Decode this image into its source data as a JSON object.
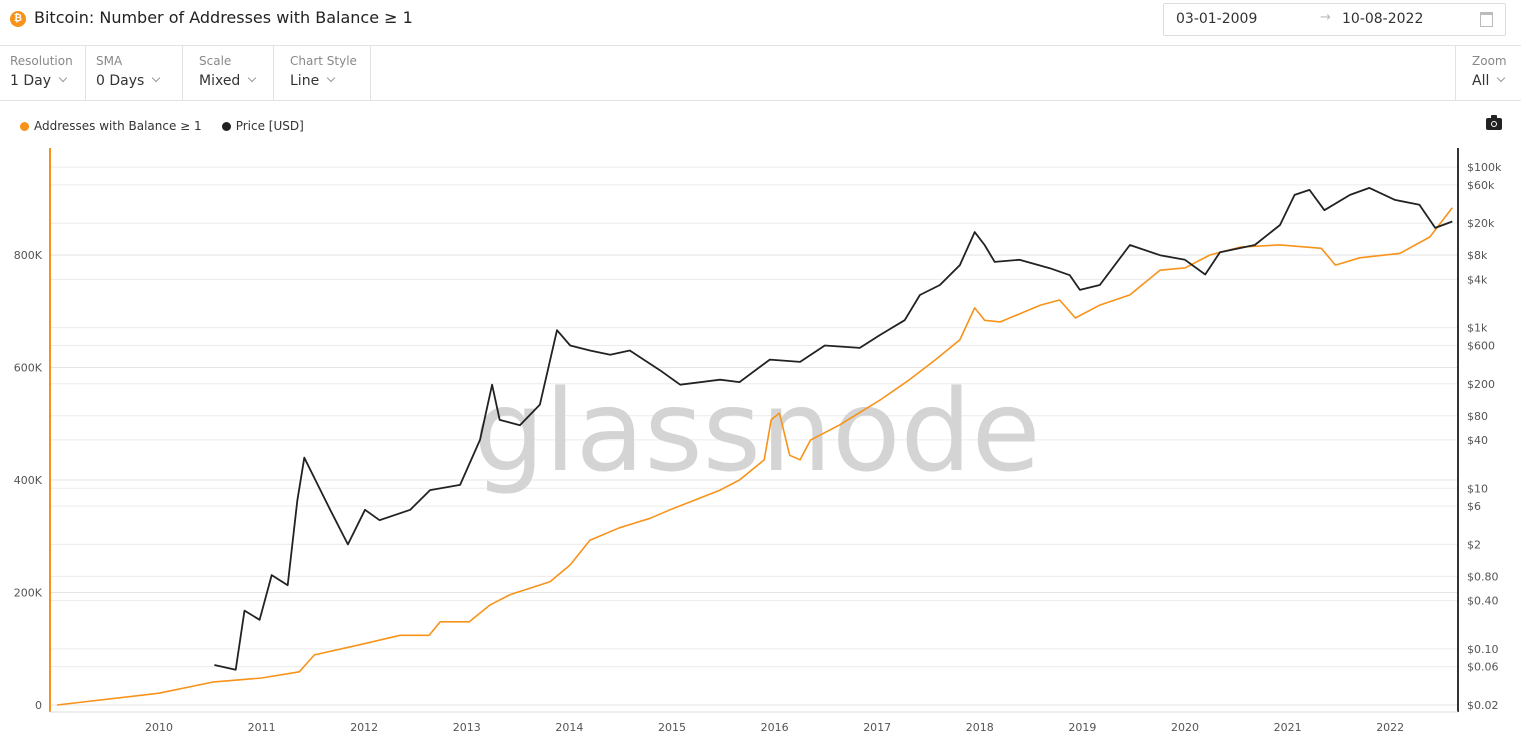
{
  "header": {
    "title": "Bitcoin: Number of Addresses with Balance ≥ 1",
    "asset_icon": "bitcoin-icon",
    "date_from": "03-01-2009",
    "date_arrow": "→",
    "date_to": "10-08-2022"
  },
  "toolbar": {
    "resolution": {
      "label": "Resolution",
      "value": "1 Day"
    },
    "sma": {
      "label": "SMA",
      "value": "0 Days"
    },
    "scale": {
      "label": "Scale",
      "value": "Mixed"
    },
    "chart_style": {
      "label": "Chart Style",
      "value": "Line"
    },
    "zoom": {
      "label": "Zoom",
      "value": "All"
    }
  },
  "watermark": "glassnode",
  "colors": {
    "addresses": "#f7931a",
    "price": "#222222",
    "grid": "#ececec"
  },
  "chart_data": {
    "type": "line",
    "title": "Bitcoin: Number of Addresses with Balance ≥ 1",
    "legend_placement": "top-left",
    "grid": true,
    "x_ticks": [
      "2010",
      "2011",
      "2012",
      "2013",
      "2014",
      "2015",
      "2016",
      "2017",
      "2018",
      "2019",
      "2020",
      "2021",
      "2022"
    ],
    "x_range": [
      "2009-01-03",
      "2022-08-10"
    ],
    "y_left": {
      "scale": "linear",
      "range": [
        0,
        1000000
      ],
      "ticks": [
        0,
        200000,
        400000,
        600000,
        800000
      ],
      "tick_labels": [
        "0",
        "200K",
        "400K",
        "600K",
        "800K"
      ]
    },
    "y_right": {
      "scale": "log",
      "range": [
        0.02,
        100000
      ],
      "ticks": [
        100000,
        60000,
        20000,
        8000,
        4000,
        1000,
        600,
        200,
        80,
        40,
        10,
        6,
        2,
        0.8,
        0.4,
        0.1,
        0.06,
        0.02
      ],
      "tick_labels": [
        "$100k",
        "$60k",
        "$20k",
        "$8k",
        "$4k",
        "$1k",
        "$600",
        "$200",
        "$80",
        "$40",
        "$10",
        "$6",
        "$2",
        "$0.80",
        "$0.40",
        "$0.10",
        "$0.06",
        "$0.02"
      ]
    },
    "series": [
      {
        "name": "Addresses with Balance ≥ 1",
        "axis": "left",
        "color": "#f7931a",
        "points": [
          [
            "2009-01-03",
            0
          ],
          [
            "2010-01-01",
            21000
          ],
          [
            "2010-07-15",
            41000
          ],
          [
            "2011-01-01",
            48000
          ],
          [
            "2011-05-15",
            59000
          ],
          [
            "2011-07-08",
            89000
          ],
          [
            "2011-12-15",
            107000
          ],
          [
            "2012-05-08",
            124000
          ],
          [
            "2012-08-20",
            124000
          ],
          [
            "2012-09-28",
            148000
          ],
          [
            "2013-01-10",
            148000
          ],
          [
            "2013-03-25",
            178000
          ],
          [
            "2013-06-03",
            196000
          ],
          [
            "2013-10-24",
            219000
          ],
          [
            "2014-01-04",
            249000
          ],
          [
            "2014-03-15",
            293000
          ],
          [
            "2014-06-28",
            315000
          ],
          [
            "2014-10-15",
            332000
          ],
          [
            "2014-12-25",
            347000
          ],
          [
            "2015-06-21",
            382000
          ],
          [
            "2015-08-29",
            400000
          ],
          [
            "2015-11-25",
            436000
          ],
          [
            "2015-12-20",
            507000
          ],
          [
            "2016-01-18",
            519000
          ],
          [
            "2016-02-24",
            444000
          ],
          [
            "2016-04-01",
            436000
          ],
          [
            "2016-05-08",
            471000
          ],
          [
            "2016-08-20",
            498000
          ],
          [
            "2017-01-11",
            542000
          ],
          [
            "2017-04-25",
            578000
          ],
          [
            "2017-07-25",
            613000
          ],
          [
            "2017-10-22",
            649000
          ],
          [
            "2017-12-14",
            706000
          ],
          [
            "2018-01-18",
            684000
          ],
          [
            "2018-03-15",
            681000
          ],
          [
            "2018-08-05",
            711000
          ],
          [
            "2018-10-12",
            720000
          ],
          [
            "2018-12-07",
            688000
          ],
          [
            "2019-03-04",
            711000
          ],
          [
            "2019-06-19",
            729000
          ],
          [
            "2019-10-04",
            773000
          ],
          [
            "2020-01-01",
            777000
          ],
          [
            "2020-03-30",
            800000
          ],
          [
            "2020-07-16",
            814000
          ],
          [
            "2020-12-05",
            818000
          ],
          [
            "2021-05-01",
            812000
          ],
          [
            "2021-06-20",
            782000
          ],
          [
            "2021-09-15",
            795000
          ],
          [
            "2022-02-05",
            803000
          ],
          [
            "2022-05-22",
            832000
          ],
          [
            "2022-08-10",
            884000
          ]
        ]
      },
      {
        "name": "Price [USD]",
        "axis": "right",
        "color": "#222222",
        "points": [
          [
            "2010-07-17",
            0.063
          ],
          [
            "2010-10-01",
            0.055
          ],
          [
            "2010-11-01",
            0.3
          ],
          [
            "2010-12-25",
            0.23
          ],
          [
            "2011-02-06",
            0.83
          ],
          [
            "2011-04-04",
            0.62
          ],
          [
            "2011-05-08",
            7
          ],
          [
            "2011-06-02",
            24
          ],
          [
            "2011-07-20",
            11
          ],
          [
            "2011-09-02",
            5.4
          ],
          [
            "2011-11-04",
            2.0
          ],
          [
            "2012-01-04",
            5.4
          ],
          [
            "2012-02-25",
            4
          ],
          [
            "2012-06-13",
            5.4
          ],
          [
            "2012-08-23",
            9.5
          ],
          [
            "2012-12-08",
            11
          ],
          [
            "2013-02-17",
            40
          ],
          [
            "2013-04-01",
            195
          ],
          [
            "2013-04-28",
            71
          ],
          [
            "2013-07-09",
            61
          ],
          [
            "2013-09-18",
            110
          ],
          [
            "2013-11-18",
            930
          ],
          [
            "2014-01-04",
            600
          ],
          [
            "2014-03-15",
            520
          ],
          [
            "2014-05-26",
            460
          ],
          [
            "2014-08-04",
            520
          ],
          [
            "2014-11-19",
            295
          ],
          [
            "2015-01-30",
            195
          ],
          [
            "2015-06-21",
            225
          ],
          [
            "2015-08-29",
            210
          ],
          [
            "2015-12-15",
            400
          ],
          [
            "2016-04-01",
            375
          ],
          [
            "2016-06-28",
            600
          ],
          [
            "2016-10-31",
            560
          ],
          [
            "2017-01-11",
            810
          ],
          [
            "2017-04-09",
            1240
          ],
          [
            "2017-06-02",
            2550
          ],
          [
            "2017-08-12",
            3400
          ],
          [
            "2017-10-22",
            6000
          ],
          [
            "2017-12-14",
            15500
          ],
          [
            "2018-01-18",
            10700
          ],
          [
            "2018-02-23",
            6600
          ],
          [
            "2018-05-22",
            7000
          ],
          [
            "2018-09-07",
            5500
          ],
          [
            "2018-11-17",
            4500
          ],
          [
            "2018-12-23",
            2950
          ],
          [
            "2019-03-04",
            3400
          ],
          [
            "2019-06-19",
            10700
          ],
          [
            "2019-10-04",
            8000
          ],
          [
            "2020-01-01",
            7000
          ],
          [
            "2020-03-13",
            4600
          ],
          [
            "2020-05-05",
            8700
          ],
          [
            "2020-09-06",
            10700
          ],
          [
            "2020-12-05",
            19000
          ],
          [
            "2021-01-26",
            45000
          ],
          [
            "2021-03-20",
            52000
          ],
          [
            "2021-05-12",
            29000
          ],
          [
            "2021-08-11",
            45000
          ],
          [
            "2021-10-19",
            55000
          ],
          [
            "2022-01-18",
            39000
          ],
          [
            "2022-04-15",
            34000
          ],
          [
            "2022-06-10",
            17500
          ],
          [
            "2022-08-10",
            21000
          ]
        ]
      }
    ]
  }
}
